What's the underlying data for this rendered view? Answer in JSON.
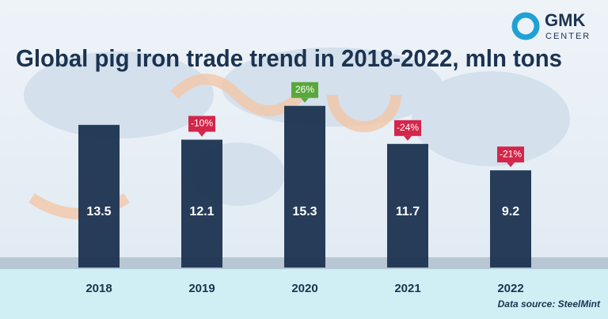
{
  "chart_data": {
    "type": "bar",
    "title": "Global pig iron trade trend in 2018-2022, mln tons",
    "categories": [
      "2018",
      "2019",
      "2020",
      "2021",
      "2022"
    ],
    "values": [
      13.5,
      12.1,
      15.3,
      11.7,
      9.2
    ],
    "color": "#1b3350",
    "ylim": [
      0,
      20
    ],
    "change_labels": [
      null,
      "-10%",
      "26%",
      "-24%",
      "-21%"
    ],
    "change_colors": [
      null,
      "#d3264a",
      "#5aa83c",
      "#d3264a",
      "#d3264a"
    ],
    "source": "Data source: SteelMint"
  },
  "logo": {
    "name": "GMK",
    "sub": "CENTER"
  }
}
